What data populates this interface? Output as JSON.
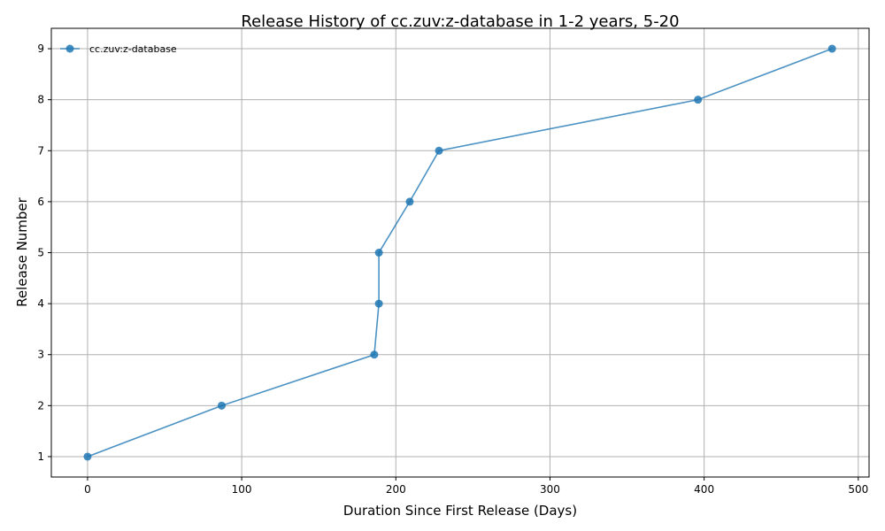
{
  "chart_data": {
    "type": "line",
    "title": "Release History of cc.zuv:z-database in 1-2 years, 5-20",
    "xlabel": "Duration Since First Release (Days)",
    "ylabel": "Release Number",
    "xlim": [
      -23.5,
      507
    ],
    "ylim": [
      0.6,
      9.4
    ],
    "xticks": [
      0,
      100,
      200,
      300,
      400,
      500
    ],
    "yticks": [
      1,
      2,
      3,
      4,
      5,
      6,
      7,
      8,
      9
    ],
    "grid": true,
    "legend_position": "top-left",
    "series": [
      {
        "name": "cc.zuv:z-database",
        "color": "#1f77b4",
        "marker": "circle",
        "x": [
          0,
          87,
          186,
          189,
          189,
          209,
          228,
          396,
          483
        ],
        "y": [
          1,
          2,
          3,
          4,
          5,
          6,
          7,
          8,
          9
        ]
      }
    ]
  }
}
